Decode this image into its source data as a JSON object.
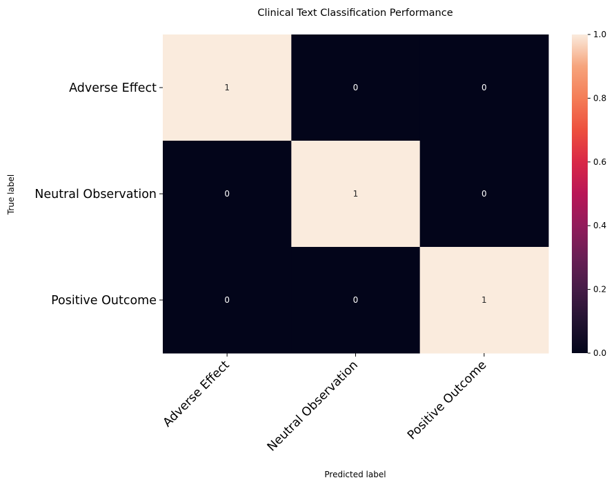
{
  "chart_data": {
    "type": "heatmap",
    "title": "Clinical Text Classification Performance",
    "xlabel": "Predicted label",
    "ylabel": "True label",
    "row_labels": [
      "Adverse Effect",
      "Neutral Observation",
      "Positive Outcome"
    ],
    "col_labels": [
      "Adverse Effect",
      "Neutral Observation",
      "Positive Outcome"
    ],
    "values": [
      [
        1,
        0,
        0
      ],
      [
        0,
        1,
        0
      ],
      [
        0,
        0,
        1
      ]
    ],
    "annotations": [
      [
        "1",
        "0",
        "0"
      ],
      [
        "0",
        "1",
        "0"
      ],
      [
        "0",
        "0",
        "1"
      ]
    ],
    "colormap": "rocket",
    "vmin": 0.0,
    "vmax": 1.0,
    "colorbar_ticks": [
      "0.0",
      "0.2",
      "0.4",
      "0.6",
      "0.8",
      "1.0"
    ],
    "colorbar_tick_values": [
      0.0,
      0.2,
      0.4,
      0.6,
      0.8,
      1.0
    ],
    "colors": {
      "low": "#03051a",
      "high": "#faebdd",
      "annotation_on_dark": "#ffffff",
      "annotation_on_light": "#262626"
    }
  }
}
